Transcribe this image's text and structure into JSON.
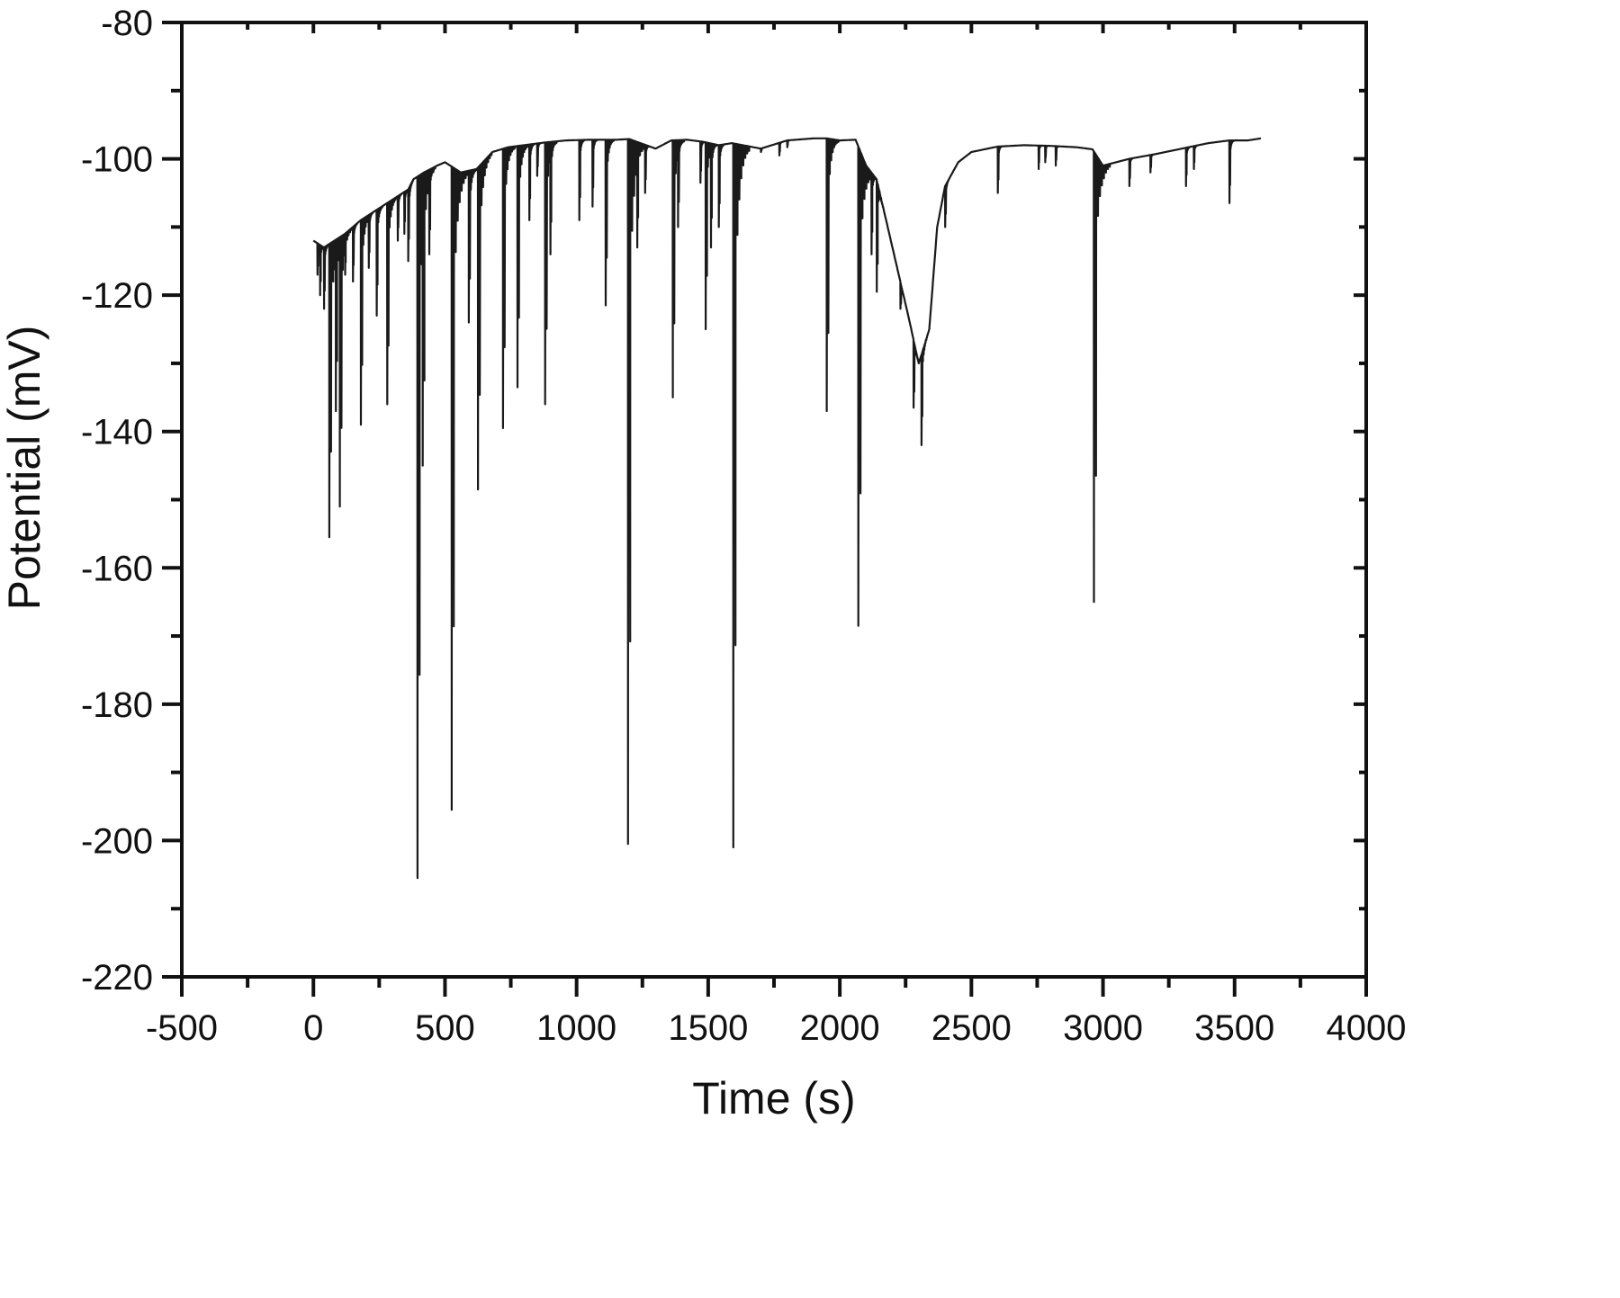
{
  "chart_data": {
    "type": "line",
    "title": "",
    "xlabel": "Time (s)",
    "ylabel": "Potential (mV)",
    "xlim": [
      -500,
      4000
    ],
    "ylim": [
      -220,
      -80
    ],
    "xticks": [
      -500,
      0,
      500,
      1000,
      1500,
      2000,
      2500,
      3000,
      3500,
      4000
    ],
    "yticks": [
      -80,
      -100,
      -120,
      -140,
      -160,
      -180,
      -200,
      -220
    ],
    "grid": false,
    "legend": null,
    "line_color": "#1a1a1a",
    "series": [
      {
        "name": "Potential",
        "baseline": [
          [
            0,
            -112
          ],
          [
            40,
            -113
          ],
          [
            80,
            -112
          ],
          [
            120,
            -111
          ],
          [
            180,
            -109
          ],
          [
            240,
            -107.5
          ],
          [
            300,
            -106
          ],
          [
            360,
            -104.5
          ],
          [
            380,
            -103
          ],
          [
            420,
            -102
          ],
          [
            470,
            -101
          ],
          [
            500,
            -100.5
          ],
          [
            560,
            -102
          ],
          [
            620,
            -101.5
          ],
          [
            680,
            -99
          ],
          [
            740,
            -98.3
          ],
          [
            800,
            -98
          ],
          [
            880,
            -97.6
          ],
          [
            960,
            -97.3
          ],
          [
            1050,
            -97.2
          ],
          [
            1150,
            -97.2
          ],
          [
            1200,
            -97.1
          ],
          [
            1300,
            -98.5
          ],
          [
            1360,
            -97.3
          ],
          [
            1420,
            -97.2
          ],
          [
            1480,
            -97.5
          ],
          [
            1540,
            -98
          ],
          [
            1590,
            -97.7
          ],
          [
            1700,
            -98.5
          ],
          [
            1800,
            -97.3
          ],
          [
            1900,
            -97
          ],
          [
            1950,
            -97
          ],
          [
            2000,
            -97.3
          ],
          [
            2060,
            -97.2
          ],
          [
            2100,
            -101
          ],
          [
            2140,
            -103
          ],
          [
            2200,
            -113
          ],
          [
            2260,
            -123
          ],
          [
            2300,
            -130
          ],
          [
            2340,
            -125
          ],
          [
            2370,
            -110
          ],
          [
            2400,
            -104
          ],
          [
            2450,
            -100.5
          ],
          [
            2500,
            -99
          ],
          [
            2600,
            -98.2
          ],
          [
            2700,
            -98
          ],
          [
            2800,
            -98.1
          ],
          [
            2900,
            -98.3
          ],
          [
            2960,
            -98.6
          ],
          [
            3000,
            -101
          ],
          [
            3100,
            -100
          ],
          [
            3200,
            -99.3
          ],
          [
            3300,
            -98.5
          ],
          [
            3400,
            -97.7
          ],
          [
            3480,
            -97.3
          ],
          [
            3550,
            -97.3
          ],
          [
            3600,
            -97
          ]
        ],
        "spikes": [
          {
            "t": 15,
            "min": -117
          },
          {
            "t": 25,
            "min": -120
          },
          {
            "t": 40,
            "min": -122
          },
          {
            "t": 60,
            "min": -155.5
          },
          {
            "t": 75,
            "min": -118
          },
          {
            "t": 85,
            "min": -137
          },
          {
            "t": 100,
            "min": -151
          },
          {
            "t": 120,
            "min": -117
          },
          {
            "t": 150,
            "min": -118
          },
          {
            "t": 180,
            "min": -139
          },
          {
            "t": 210,
            "min": -116
          },
          {
            "t": 240,
            "min": -123
          },
          {
            "t": 280,
            "min": -136
          },
          {
            "t": 320,
            "min": -112
          },
          {
            "t": 345,
            "min": -111
          },
          {
            "t": 360,
            "min": -115
          },
          {
            "t": 395,
            "min": -205.5
          },
          {
            "t": 415,
            "min": -145
          },
          {
            "t": 440,
            "min": -114
          },
          {
            "t": 525,
            "min": -195.5
          },
          {
            "t": 590,
            "min": -124
          },
          {
            "t": 625,
            "min": -148.5
          },
          {
            "t": 720,
            "min": -139.5
          },
          {
            "t": 775,
            "min": -133.5
          },
          {
            "t": 820,
            "min": -109
          },
          {
            "t": 850,
            "min": -102.5
          },
          {
            "t": 880,
            "min": -136
          },
          {
            "t": 900,
            "min": -114
          },
          {
            "t": 1010,
            "min": -109
          },
          {
            "t": 1060,
            "min": -107
          },
          {
            "t": 1110,
            "min": -121.5
          },
          {
            "t": 1195,
            "min": -200.5
          },
          {
            "t": 1230,
            "min": -113
          },
          {
            "t": 1260,
            "min": -105
          },
          {
            "t": 1365,
            "min": -135
          },
          {
            "t": 1385,
            "min": -110
          },
          {
            "t": 1470,
            "min": -103.5
          },
          {
            "t": 1490,
            "min": -125
          },
          {
            "t": 1510,
            "min": -113
          },
          {
            "t": 1540,
            "min": -110
          },
          {
            "t": 1595,
            "min": -201
          },
          {
            "t": 1700,
            "min": -99
          },
          {
            "t": 1770,
            "min": -99.5
          },
          {
            "t": 1800,
            "min": -98.3
          },
          {
            "t": 1950,
            "min": -137
          },
          {
            "t": 2070,
            "min": -168.5
          },
          {
            "t": 2120,
            "min": -114
          },
          {
            "t": 2140,
            "min": -119.5
          },
          {
            "t": 2230,
            "min": -122
          },
          {
            "t": 2280,
            "min": -136.5
          },
          {
            "t": 2310,
            "min": -142
          },
          {
            "t": 2400,
            "min": -110
          },
          {
            "t": 2600,
            "min": -105
          },
          {
            "t": 2755,
            "min": -101.5
          },
          {
            "t": 2780,
            "min": -100.5
          },
          {
            "t": 2820,
            "min": -101
          },
          {
            "t": 2965,
            "min": -165
          },
          {
            "t": 3100,
            "min": -104
          },
          {
            "t": 3180,
            "min": -102
          },
          {
            "t": 3315,
            "min": -104
          },
          {
            "t": 3345,
            "min": -101.5
          },
          {
            "t": 3480,
            "min": -106.5
          }
        ],
        "summary": {
          "start": {
            "t": 0,
            "v": -112
          },
          "end": {
            "t": 3600,
            "v": -97
          },
          "deepest_spike": {
            "t": 395,
            "v": -205.5
          },
          "plateau_level": -97
        }
      }
    ]
  }
}
